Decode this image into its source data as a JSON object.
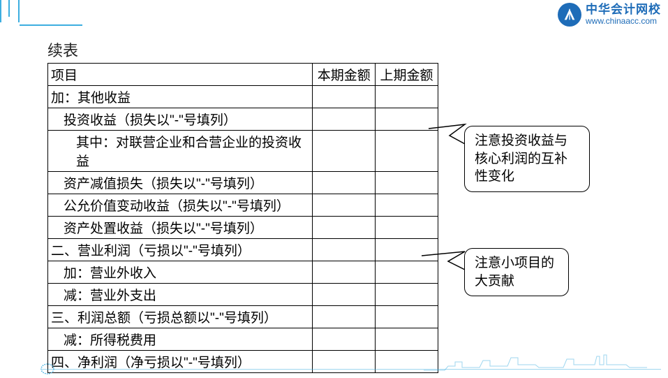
{
  "brand": {
    "name_cn": "中华会计网校",
    "name_en": "www.chinaacc.com",
    "logo_bg": "#1e6cb8",
    "logo_fg": "#ffffff",
    "accent": "#3daee0"
  },
  "title": "续表",
  "table": {
    "headers": [
      "项目",
      "本期金额",
      "上期金额"
    ],
    "rows": [
      {
        "label": "加：其他收益",
        "indent": 0
      },
      {
        "label": "投资收益（损失以\"-\"号填列）",
        "indent": 1
      },
      {
        "label": "其中：对联营企业和合营企业的投资收益",
        "indent": 2
      },
      {
        "label": "资产减值损失（损失以\"-\"号填列）",
        "indent": 1
      },
      {
        "label": "公允价值变动收益（损失以\"-\"号填列）",
        "indent": 1
      },
      {
        "label": "资产处置收益（损失以\"-\"号填列）",
        "indent": 1
      },
      {
        "label": "二、营业利润（亏损以\"-\"号填列）",
        "indent": 0
      },
      {
        "label": "加：营业外收入",
        "indent": 1
      },
      {
        "label": "减：营业外支出",
        "indent": 1
      },
      {
        "label": "三、利润总额（亏损总额以\"-\"号填列）",
        "indent": 0
      },
      {
        "label": "减：所得税费用",
        "indent": 1
      },
      {
        "label": "四、净利润（净亏损以\"-\"号填列）",
        "indent": 0
      }
    ]
  },
  "callouts": [
    {
      "text": "注意投资收益与核心利润的互补性变化"
    },
    {
      "text": "注意小项目的大贡献"
    }
  ],
  "colors": {
    "text": "#222222",
    "border": "#000000",
    "background": "#ffffff"
  }
}
